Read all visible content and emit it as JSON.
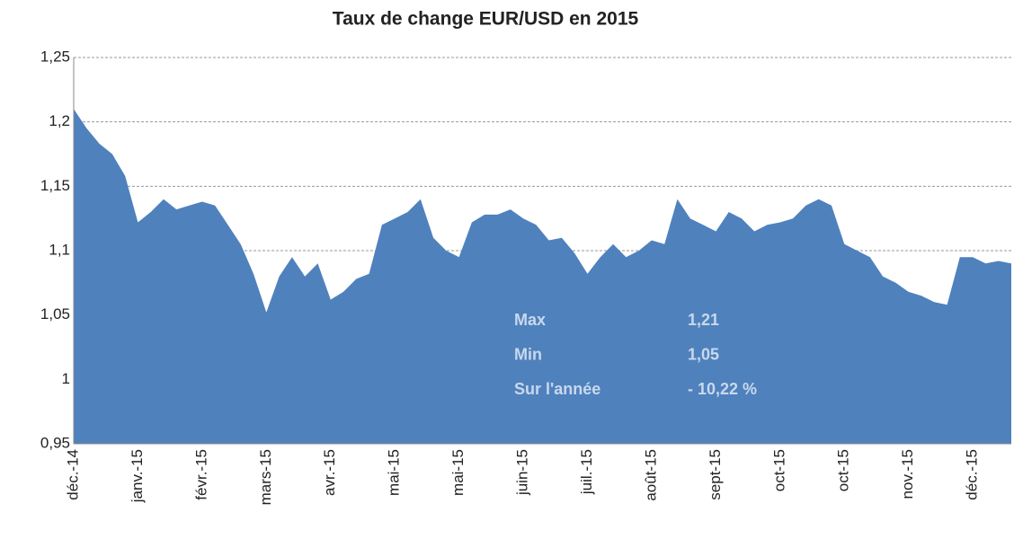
{
  "chart_data": {
    "type": "area",
    "title": "Taux de change EUR/USD en 2015",
    "categories": [
      "déc.-14",
      null,
      null,
      null,
      null,
      "janv.-15",
      null,
      null,
      null,
      null,
      "févr.-15",
      null,
      null,
      null,
      null,
      "mars-15",
      null,
      null,
      null,
      null,
      "avr.-15",
      null,
      null,
      null,
      null,
      "mai-15",
      null,
      null,
      null,
      null,
      "mai-15",
      null,
      null,
      null,
      null,
      "juin-15",
      null,
      null,
      null,
      null,
      "juil.-15",
      null,
      null,
      null,
      null,
      "août-15",
      null,
      null,
      null,
      null,
      "sept-15",
      null,
      null,
      null,
      null,
      "oct-15",
      null,
      null,
      null,
      null,
      "oct-15",
      null,
      null,
      null,
      null,
      "nov.-15",
      null,
      null,
      null,
      null,
      "déc.-15",
      null,
      null,
      null
    ],
    "values": [
      1.21,
      1.195,
      1.183,
      1.175,
      1.158,
      1.122,
      1.13,
      1.14,
      1.132,
      1.135,
      1.138,
      1.135,
      1.12,
      1.105,
      1.082,
      1.052,
      1.08,
      1.095,
      1.08,
      1.09,
      1.062,
      1.068,
      1.078,
      1.082,
      1.12,
      1.125,
      1.13,
      1.14,
      1.11,
      1.1,
      1.095,
      1.122,
      1.128,
      1.128,
      1.132,
      1.125,
      1.12,
      1.108,
      1.11,
      1.098,
      1.082,
      1.095,
      1.105,
      1.095,
      1.1,
      1.108,
      1.105,
      1.14,
      1.125,
      1.12,
      1.115,
      1.13,
      1.125,
      1.115,
      1.12,
      1.122,
      1.125,
      1.135,
      1.14,
      1.135,
      1.105,
      1.1,
      1.095,
      1.08,
      1.075,
      1.068,
      1.065,
      1.06,
      1.058,
      1.095,
      1.095,
      1.09,
      1.092,
      1.09
    ],
    "color": "#4f81bd",
    "ylim": [
      0.95,
      1.25
    ],
    "yticks": [
      {
        "value": 0.95,
        "label": "0,95"
      },
      1,
      {
        "value": 1.05,
        "label": "1,05"
      },
      {
        "value": 1.1,
        "label": "1,1"
      },
      {
        "value": 1.15,
        "label": "1,15"
      },
      {
        "value": 1.2,
        "label": "1,2"
      },
      {
        "value": 1.25,
        "label": "1,25"
      }
    ],
    "grid": true,
    "annotations": [
      [
        "Max",
        "1,21"
      ],
      [
        "Min",
        "1,05"
      ],
      [
        "Sur l'année",
        "- 10,22 %"
      ]
    ]
  }
}
